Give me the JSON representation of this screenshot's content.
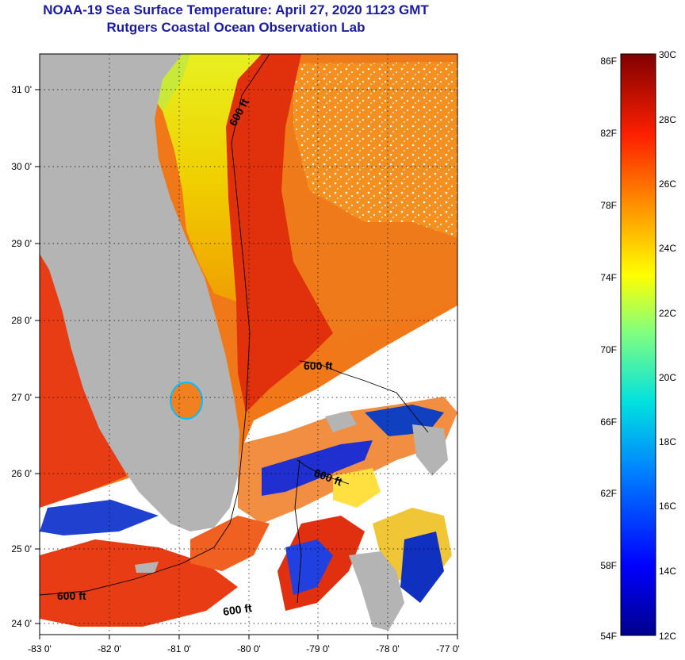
{
  "title": {
    "line1": "NOAA-19 Sea Surface Temperature:  April 27, 2020 1123 GMT",
    "line2": "Rutgers Coastal Ocean Observation Lab"
  },
  "map": {
    "lon_ticks": [
      "-83 0'",
      "-82 0'",
      "-81 0'",
      "-80 0'",
      "-79 0'",
      "-78 0'",
      "-77 0'"
    ],
    "lat_ticks": [
      "31 0'",
      "30 0'",
      "29 0'",
      "28 0'",
      "27 0'",
      "26 0'",
      "25 0'",
      "24 0'"
    ],
    "contour_labels": [
      "600 ft",
      "600 ft",
      "600 ft",
      "600 ft",
      "600 ft"
    ],
    "colors": {
      "land": "#b4b4b4",
      "cloud": "#ffffff",
      "gulf_stream": "#e0300c",
      "open_ocean": "#f07818",
      "shelf_water": "#d8e820"
    }
  },
  "colorbar": {
    "fahrenheit": [
      "86F",
      "82F",
      "78F",
      "74F",
      "70F",
      "66F",
      "62F",
      "58F",
      "54F"
    ],
    "celsius": [
      "30C",
      "28C",
      "26C",
      "24C",
      "22C",
      "20C",
      "18C",
      "16C",
      "14C",
      "12C"
    ]
  }
}
